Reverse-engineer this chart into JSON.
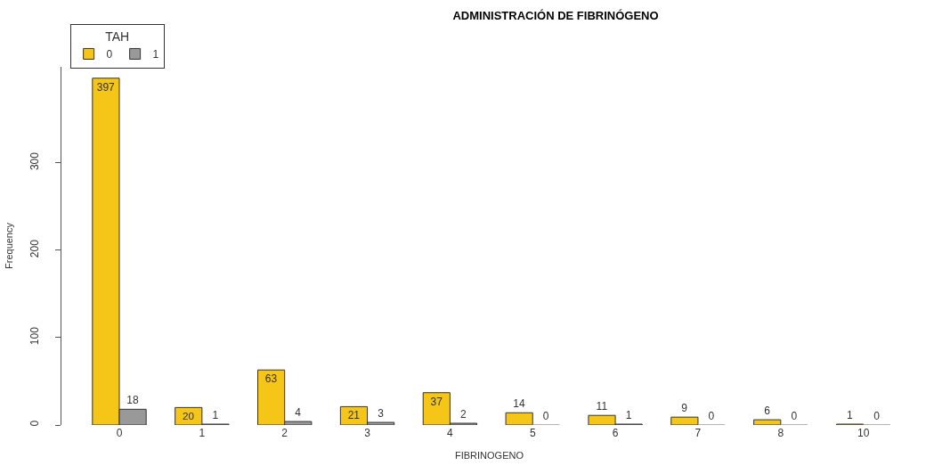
{
  "chart_data": {
    "type": "bar",
    "title": "ADMINISTRACIÓN DE FIBRINÓGENO",
    "xlabel": "FIBRINOGENO",
    "ylabel": "Frequency",
    "legend_title": "TAH",
    "categories": [
      "0",
      "1",
      "2",
      "3",
      "4",
      "5",
      "6",
      "7",
      "8",
      "10"
    ],
    "series": [
      {
        "name": "0",
        "color": "#f5c518",
        "values": [
          397,
          20,
          63,
          21,
          37,
          14,
          11,
          9,
          6,
          1
        ]
      },
      {
        "name": "1",
        "color": "#999999",
        "values": [
          18,
          1,
          4,
          3,
          2,
          0,
          1,
          0,
          0,
          0
        ]
      }
    ],
    "ylim": [
      0,
      410
    ],
    "yticks": [
      0,
      100,
      200,
      300
    ],
    "legend": "top left",
    "data_labels": true
  }
}
